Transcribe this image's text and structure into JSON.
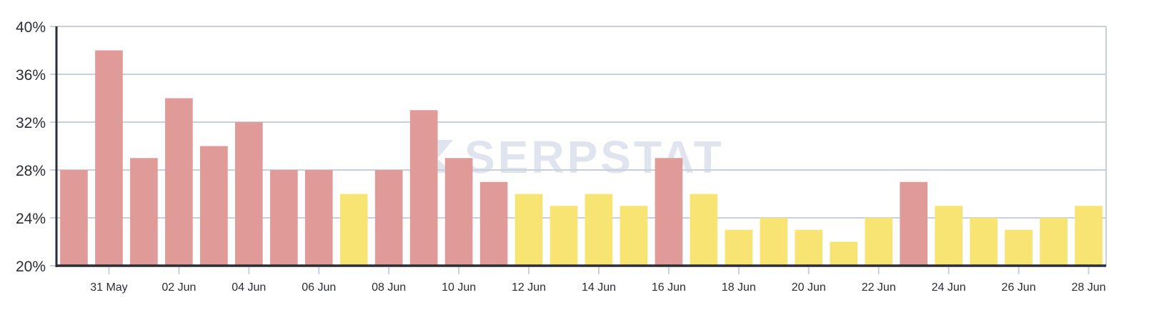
{
  "chart_data": {
    "type": "bar",
    "title": "",
    "xlabel": "",
    "ylabel": "",
    "ylim": [
      20,
      40
    ],
    "yticks": [
      "20%",
      "24%",
      "28%",
      "32%",
      "36%",
      "40%"
    ],
    "ytick_values": [
      20,
      24,
      28,
      32,
      36,
      40
    ],
    "grid": true,
    "legend": null,
    "watermark": "SERPSTAT",
    "categories": [
      "30 May",
      "31 May",
      "01 Jun",
      "02 Jun",
      "03 Jun",
      "04 Jun",
      "05 Jun",
      "06 Jun",
      "07 Jun",
      "08 Jun",
      "09 Jun",
      "10 Jun",
      "11 Jun",
      "12 Jun",
      "13 Jun",
      "14 Jun",
      "15 Jun",
      "16 Jun",
      "17 Jun",
      "18 Jun",
      "19 Jun",
      "20 Jun",
      "21 Jun",
      "22 Jun",
      "23 Jun",
      "24 Jun",
      "25 Jun",
      "26 Jun",
      "27 Jun",
      "28 Jun"
    ],
    "xtick_labels": [
      "31 May",
      "02 Jun",
      "04 Jun",
      "06 Jun",
      "08 Jun",
      "10 Jun",
      "12 Jun",
      "14 Jun",
      "16 Jun",
      "18 Jun",
      "20 Jun",
      "22 Jun",
      "24 Jun",
      "26 Jun",
      "28 Jun"
    ],
    "values": [
      28,
      38,
      29,
      34,
      30,
      32,
      28,
      28,
      26,
      28,
      33,
      29,
      27,
      26,
      25,
      26,
      25,
      29,
      26,
      23,
      24,
      23,
      22,
      24,
      27,
      25,
      24,
      23,
      24,
      25
    ],
    "bar_colors": [
      "red",
      "red",
      "red",
      "red",
      "red",
      "red",
      "red",
      "red",
      "yellow",
      "red",
      "red",
      "red",
      "red",
      "yellow",
      "yellow",
      "yellow",
      "yellow",
      "red",
      "yellow",
      "yellow",
      "yellow",
      "yellow",
      "yellow",
      "yellow",
      "red",
      "yellow",
      "yellow",
      "yellow",
      "yellow",
      "yellow"
    ],
    "palette": {
      "red": "#e09a98",
      "yellow": "#f8e473",
      "grid": "#c8d0de",
      "axis": "#2b2d36"
    }
  }
}
